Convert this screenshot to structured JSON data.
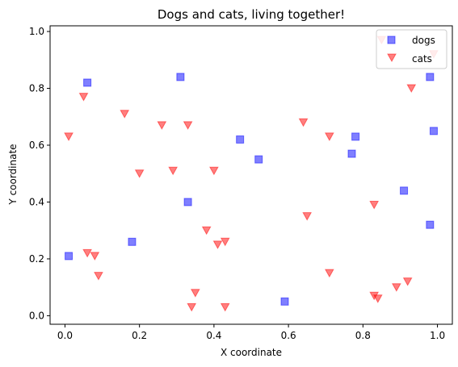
{
  "chart_data": {
    "type": "scatter",
    "title": "Dogs and cats, living together!",
    "xlabel": "X coordinate",
    "ylabel": "Y coordinate",
    "xlim": [
      -0.04,
      1.04
    ],
    "ylim": [
      -0.03,
      1.02
    ],
    "xticks": [
      0.0,
      0.2,
      0.4,
      0.6,
      0.8,
      1.0
    ],
    "yticks": [
      0.0,
      0.2,
      0.4,
      0.6,
      0.8,
      1.0
    ],
    "xtick_labels": [
      "0.0",
      "0.2",
      "0.4",
      "0.6",
      "0.8",
      "1.0"
    ],
    "ytick_labels": [
      "0.0",
      "0.2",
      "0.4",
      "0.6",
      "0.8",
      "1.0"
    ],
    "grid": false,
    "legend_position": "top-right",
    "series": [
      {
        "name": "dogs",
        "marker": "square",
        "color": "#0000ff",
        "alpha": 0.5,
        "points": [
          [
            0.01,
            0.21
          ],
          [
            0.06,
            0.82
          ],
          [
            0.18,
            0.26
          ],
          [
            0.31,
            0.84
          ],
          [
            0.33,
            0.4
          ],
          [
            0.47,
            0.62
          ],
          [
            0.52,
            0.55
          ],
          [
            0.59,
            0.05
          ],
          [
            0.77,
            0.57
          ],
          [
            0.78,
            0.63
          ],
          [
            0.91,
            0.44
          ],
          [
            0.98,
            0.84
          ],
          [
            0.99,
            0.65
          ],
          [
            0.98,
            0.32
          ]
        ]
      },
      {
        "name": "cats",
        "marker": "triangle-down",
        "color": "#ff0000",
        "alpha": 0.5,
        "points": [
          [
            0.01,
            0.63
          ],
          [
            0.05,
            0.77
          ],
          [
            0.06,
            0.22
          ],
          [
            0.08,
            0.21
          ],
          [
            0.09,
            0.14
          ],
          [
            0.16,
            0.71
          ],
          [
            0.2,
            0.5
          ],
          [
            0.26,
            0.67
          ],
          [
            0.29,
            0.51
          ],
          [
            0.33,
            0.67
          ],
          [
            0.34,
            0.03
          ],
          [
            0.35,
            0.08
          ],
          [
            0.38,
            0.3
          ],
          [
            0.4,
            0.51
          ],
          [
            0.41,
            0.25
          ],
          [
            0.43,
            0.26
          ],
          [
            0.43,
            0.03
          ],
          [
            0.64,
            0.68
          ],
          [
            0.65,
            0.35
          ],
          [
            0.71,
            0.63
          ],
          [
            0.71,
            0.15
          ],
          [
            0.83,
            0.39
          ],
          [
            0.83,
            0.07
          ],
          [
            0.84,
            0.06
          ],
          [
            0.85,
            0.97
          ],
          [
            0.89,
            0.1
          ],
          [
            0.92,
            0.12
          ],
          [
            0.93,
            0.8
          ],
          [
            0.99,
            0.92
          ]
        ]
      }
    ]
  }
}
